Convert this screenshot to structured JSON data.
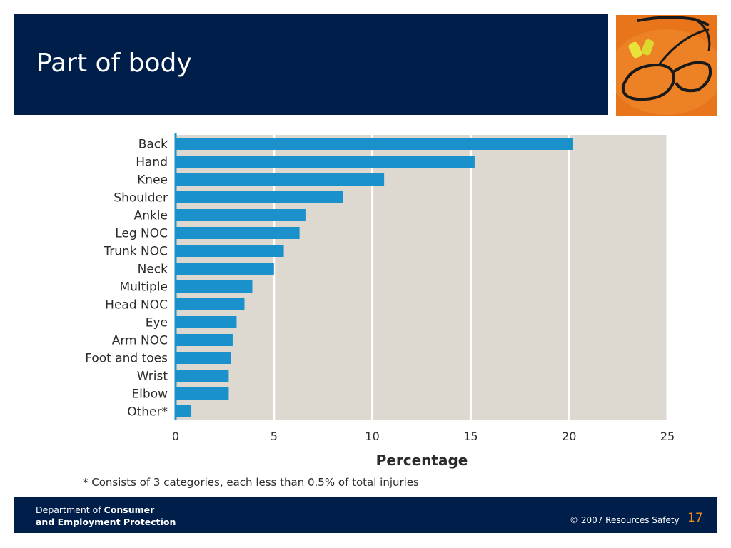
{
  "slide": {
    "title": "Part of body",
    "footnote": "* Consists of 3 categories, each less than 0.5% of total injuries",
    "footer": {
      "dept_prefix": "Department of ",
      "dept_bold_1": "Consumer",
      "dept_bold_2": "and Employment Protection",
      "copyright": "© 2007 Resources Safety",
      "page_number": "17"
    }
  },
  "colors": {
    "header_bg": "#001e4a",
    "bar": "#1a91cb",
    "plot_bg": "#ddd8d0",
    "page_number": "#f08c1c"
  },
  "chart_data": {
    "type": "bar",
    "orientation": "horizontal",
    "categories": [
      "Back",
      "Hand",
      "Knee",
      "Shoulder",
      "Ankle",
      "Leg NOC",
      "Trunk NOC",
      "Neck",
      "Multiple",
      "Head NOC",
      "Eye",
      "Arm NOC",
      "Foot and toes",
      "Wrist",
      "Elbow",
      "Other*"
    ],
    "values": [
      20.2,
      15.2,
      10.6,
      8.5,
      6.6,
      6.3,
      5.5,
      5.0,
      3.9,
      3.5,
      3.1,
      2.9,
      2.8,
      2.7,
      2.7,
      0.8
    ],
    "xlabel": "Percentage",
    "xlim": [
      0,
      25
    ],
    "xticks": [
      0,
      5,
      10,
      15,
      20,
      25
    ],
    "grid": true
  }
}
